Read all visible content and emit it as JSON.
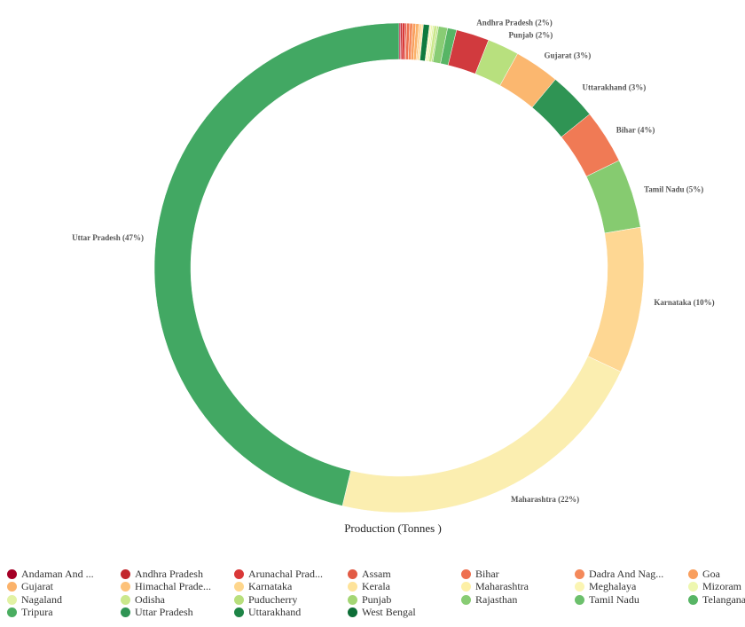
{
  "chart_data": {
    "type": "donut",
    "title": "Production (Tonnes )",
    "slices": [
      {
        "name": "Andaman And Nicobar Islands",
        "percent": 0.1,
        "color": "#a50026",
        "label": ""
      },
      {
        "name": "Andhra Pradesh",
        "percent": 0.1,
        "color": "#c2272d",
        "label": ""
      },
      {
        "name": "Arunachal Pradesh",
        "percent": 0.2,
        "color": "#d93838",
        "label": ""
      },
      {
        "name": "Assam",
        "percent": 0.1,
        "color": "#e25b45",
        "label": ""
      },
      {
        "name": "Bihar",
        "percent": 0.2,
        "color": "#ee7050",
        "label": ""
      },
      {
        "name": "Dadra And Nagar Haveli",
        "percent": 0.2,
        "color": "#f4895a",
        "label": ""
      },
      {
        "name": "Goa",
        "percent": 0.2,
        "color": "#f99f5e",
        "label": ""
      },
      {
        "name": "Gujarat",
        "percent": 0.2,
        "color": "#fbb26a",
        "label": ""
      },
      {
        "name": "Himachal Pradesh",
        "percent": 0.1,
        "color": "#fdc27a",
        "label": ""
      },
      {
        "name": "Karnataka",
        "percent": 0.1,
        "color": "#fed68c",
        "label": ""
      },
      {
        "name": "Kerala",
        "percent": 0.1,
        "color": "#fee39a",
        "label": ""
      },
      {
        "name": "Maharashtra",
        "percent": 0.4,
        "color": "#0f7a3d",
        "label": ""
      },
      {
        "name": "Meghalaya",
        "percent": 0.1,
        "color": "#fbf5b3",
        "label": ""
      },
      {
        "name": "Mizoram",
        "percent": 0.1,
        "color": "#eef7b0",
        "label": ""
      },
      {
        "name": "Nagaland",
        "percent": 0.1,
        "color": "#e2f2a4",
        "label": ""
      },
      {
        "name": "Odisha",
        "percent": 0.2,
        "color": "#cbe88c",
        "label": ""
      },
      {
        "name": "Puducherry",
        "percent": 0.1,
        "color": "#b8df7c",
        "label": ""
      },
      {
        "name": "Rajasthan",
        "percent": 0.6,
        "color": "#88cc74",
        "label": ""
      },
      {
        "name": "Telangana",
        "percent": 0.6,
        "color": "#57b565",
        "label": ""
      },
      {
        "name": "Andhra Pradesh",
        "percent": 2.2,
        "color": "#d13a3e",
        "label": "Andhra Pradesh (2%)"
      },
      {
        "name": "Punjab",
        "percent": 2.1,
        "color": "#b8e07e",
        "label": "Punjab (2%)"
      },
      {
        "name": "Gujarat",
        "percent": 3.0,
        "color": "#fbb76f",
        "label": "Gujarat (3%)"
      },
      {
        "name": "Uttarakhand",
        "percent": 3.2,
        "color": "#2f9454",
        "label": "Uttarakhand (3%)"
      },
      {
        "name": "Bihar",
        "percent": 3.6,
        "color": "#f07a55",
        "label": "Bihar (4%)"
      },
      {
        "name": "Tamil Nadu",
        "percent": 4.6,
        "color": "#86cb70",
        "label": "Tamil Nadu (5%)"
      },
      {
        "name": "Karnataka",
        "percent": 9.7,
        "color": "#fed793",
        "label": "Karnataka (10%)"
      },
      {
        "name": "Maharashtra",
        "percent": 21.9,
        "color": "#fbeeb0",
        "label": "Maharashtra (22%)"
      },
      {
        "name": "Uttar Pradesh",
        "percent": 46.6,
        "color": "#42a863",
        "label": "Uttar Pradesh (47%)"
      }
    ]
  },
  "legend": {
    "items": [
      {
        "label": "Andaman And ...",
        "color": "#a50026"
      },
      {
        "label": "Andhra Pradesh",
        "color": "#c2272d"
      },
      {
        "label": "Arunachal Prad...",
        "color": "#d93838"
      },
      {
        "label": "Assam",
        "color": "#e25b45"
      },
      {
        "label": "Bihar",
        "color": "#ee7050"
      },
      {
        "label": "Dadra And Nag...",
        "color": "#f4895a"
      },
      {
        "label": "Goa",
        "color": "#f99f5e"
      },
      {
        "label": "Gujarat",
        "color": "#fbb26a"
      },
      {
        "label": "Himachal Prade...",
        "color": "#fdc27a"
      },
      {
        "label": "Karnataka",
        "color": "#fed68c"
      },
      {
        "label": "Kerala",
        "color": "#fee39a"
      },
      {
        "label": "Maharashtra",
        "color": "#fdf0a6"
      },
      {
        "label": "Meghalaya",
        "color": "#fbf5b3"
      },
      {
        "label": "Mizoram",
        "color": "#eef7b0"
      },
      {
        "label": "Nagaland",
        "color": "#e2f2a4"
      },
      {
        "label": "Odisha",
        "color": "#cbe88c"
      },
      {
        "label": "Puducherry",
        "color": "#b8df7c"
      },
      {
        "label": "Punjab",
        "color": "#a4d674"
      },
      {
        "label": "Rajasthan",
        "color": "#88cc74"
      },
      {
        "label": "Tamil Nadu",
        "color": "#6cc06c"
      },
      {
        "label": "Telangana",
        "color": "#57b565"
      },
      {
        "label": "Tripura",
        "color": "#4aad60"
      },
      {
        "label": "Uttar Pradesh",
        "color": "#2f9454"
      },
      {
        "label": "Uttarakhand",
        "color": "#1e8446"
      },
      {
        "label": "West Bengal",
        "color": "#0d6e37"
      }
    ]
  }
}
